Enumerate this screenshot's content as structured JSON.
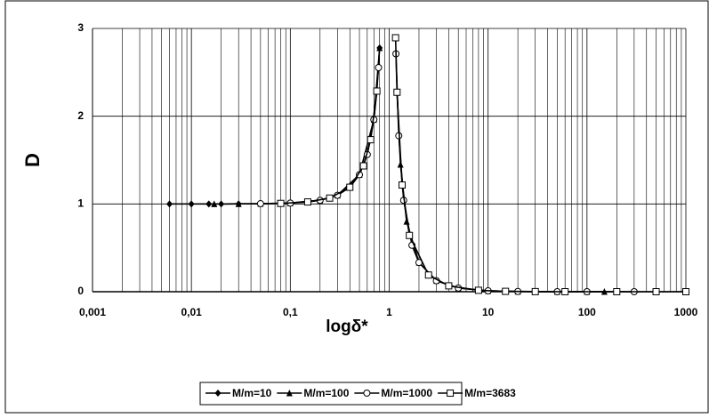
{
  "chart_data": {
    "type": "line",
    "xlabel": "logδ*",
    "ylabel": "D",
    "log_x": true,
    "grid": true,
    "legend": "bottom",
    "xlim": [
      0.001,
      1000
    ],
    "ylim": [
      0,
      3
    ],
    "xticks": [
      {
        "value": 0.001,
        "label": "0,001"
      },
      {
        "value": 0.01,
        "label": "0,01"
      },
      {
        "value": 0.1,
        "label": "0,1"
      },
      1,
      10,
      100,
      1000
    ],
    "xminorticks": [
      0.002,
      0.003,
      0.004,
      0.005,
      0.006,
      0.007,
      0.008,
      0.009,
      0.02,
      0.03,
      0.04,
      0.05,
      0.06,
      0.07,
      0.08,
      0.09,
      0.2,
      0.3,
      0.4,
      0.5,
      0.6,
      0.7,
      0.8,
      0.9,
      2,
      3,
      4,
      5,
      6,
      7,
      8,
      9,
      20,
      30,
      40,
      50,
      60,
      70,
      80,
      90,
      200,
      300,
      400,
      500,
      600,
      700,
      800,
      900
    ],
    "yticks": [
      0,
      1,
      2,
      3
    ],
    "series": [
      {
        "name": "M/m=10",
        "color": "#000000",
        "marker": "diamond",
        "x": [
          0.006,
          0.01,
          0.015,
          0.02,
          0.03,
          0.05,
          0.08,
          0.1,
          0.15,
          0.2,
          0.3,
          0.4,
          0.5,
          0.6,
          0.7,
          0.75,
          0.8
        ],
        "values": [
          1.0,
          1.0,
          1.0,
          1.0,
          1.001,
          1.003,
          1.006,
          1.01,
          1.023,
          1.042,
          1.099,
          1.19,
          1.333,
          1.563,
          1.961,
          2.286,
          2.778
        ]
      },
      {
        "name": "M/m=100",
        "color": "#000000",
        "marker": "triangle",
        "x": [
          0.017,
          0.03,
          0.05,
          0.1,
          0.2,
          0.3,
          0.5,
          0.7,
          0.8,
          null,
          1.2,
          1.3,
          1.5,
          2,
          3,
          5,
          10,
          20,
          50,
          100,
          150
        ],
        "values": [
          1.0,
          1.001,
          1.003,
          1.01,
          1.042,
          1.099,
          1.333,
          1.961,
          2.778,
          null,
          2.273,
          1.449,
          0.8,
          0.333,
          0.125,
          0.042,
          0.01,
          0.003,
          0.0,
          0.0,
          0.0
        ]
      },
      {
        "name": "M/m=1000",
        "color": "#000000",
        "marker": "circle",
        "x": [
          0.05,
          0.1,
          0.2,
          0.3,
          0.5,
          0.6,
          0.7,
          0.78,
          null,
          1.17,
          1.25,
          1.4,
          1.7,
          2,
          3,
          5,
          10,
          20,
          50,
          100,
          300
        ],
        "values": [
          1.003,
          1.01,
          1.042,
          1.099,
          1.333,
          1.563,
          1.961,
          2.554,
          null,
          2.711,
          1.778,
          1.042,
          0.529,
          0.333,
          0.125,
          0.042,
          0.01,
          0.003,
          0.0,
          0.0,
          0.0
        ]
      },
      {
        "name": "M/m=3683",
        "color": "#000000",
        "marker": "square",
        "x": [
          0.08,
          0.15,
          0.25,
          0.4,
          0.55,
          0.65,
          0.75,
          null,
          1.16,
          1.2,
          1.35,
          1.6,
          2.5,
          4,
          8,
          15,
          30,
          60,
          200,
          500,
          1000
        ],
        "values": [
          1.006,
          1.023,
          1.067,
          1.19,
          1.434,
          1.732,
          2.286,
          null,
          2.894,
          2.273,
          1.216,
          0.641,
          0.19,
          0.067,
          0.016,
          0.004,
          0.001,
          0.0,
          0.0,
          0.0,
          0.0
        ]
      }
    ]
  }
}
